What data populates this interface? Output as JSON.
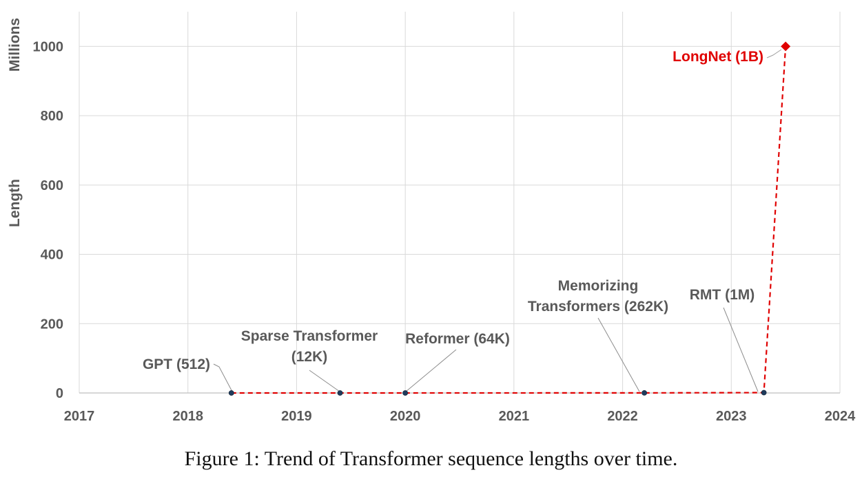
{
  "caption": "Figure 1: Trend of Transformer sequence lengths over time.",
  "chart_data": {
    "type": "line",
    "xlim": [
      2017,
      2024
    ],
    "ylim": [
      0,
      1100
    ],
    "x_ticks": [
      2017,
      2018,
      2019,
      2020,
      2021,
      2022,
      2023,
      2024
    ],
    "y_ticks": [
      0,
      200,
      400,
      600,
      800,
      1000
    ],
    "ylabel": "Length",
    "y_unit_label": "Millions",
    "grid": true,
    "colors": {
      "line": "#e00000",
      "marker": "#1f3b5c",
      "label": "#595959",
      "highlight": "#e00000",
      "grid": "#d9d9d9"
    },
    "points": [
      {
        "x": 2018.4,
        "y": 0.000512,
        "label": "GPT (512)"
      },
      {
        "x": 2019.4,
        "y": 0.012,
        "label": "Sparse Transformer (12K)"
      },
      {
        "x": 2020.0,
        "y": 0.064,
        "label": "Reformer (64K)"
      },
      {
        "x": 2022.2,
        "y": 0.262,
        "label": "Memorizing Transformers (262K)"
      },
      {
        "x": 2023.3,
        "y": 1,
        "label": "RMT (1M)"
      },
      {
        "x": 2023.5,
        "y": 1000,
        "label": "LongNet (1B)",
        "highlight": true
      }
    ]
  }
}
